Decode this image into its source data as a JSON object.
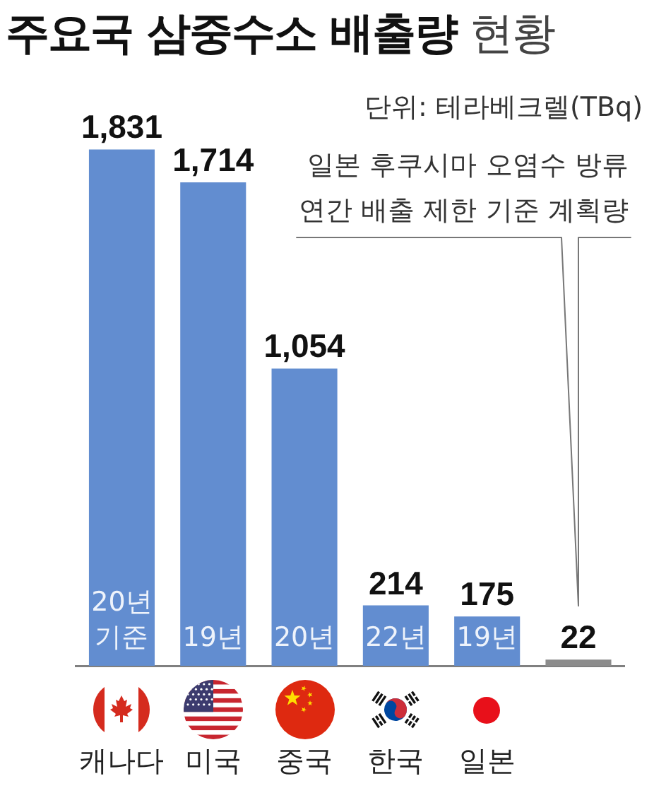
{
  "chart_data": {
    "type": "bar",
    "title": "주요국 삼중수소 배출량 현황",
    "subtitle": "단위: 테라베크렐(TBq)",
    "categories": [
      "캐나다",
      "미국",
      "중국",
      "한국",
      "일본",
      null
    ],
    "values": [
      1831,
      1714,
      1054,
      214,
      175,
      22
    ],
    "colors": [
      "#628dd0",
      "#628dd0",
      "#628dd0",
      "#628dd0",
      "#628dd0",
      "#8c8c8c"
    ],
    "value_labels": [
      "1,831",
      "1,714",
      "1,054",
      "214",
      "175",
      "22"
    ],
    "annotations": [
      "20년\n기준",
      "19년",
      "20년",
      "22년",
      "19년",
      "일본 후쿠시마 오염수 방류\n연간 배출 제한 기준 계획량"
    ],
    "grid": false,
    "legend": false
  }
}
